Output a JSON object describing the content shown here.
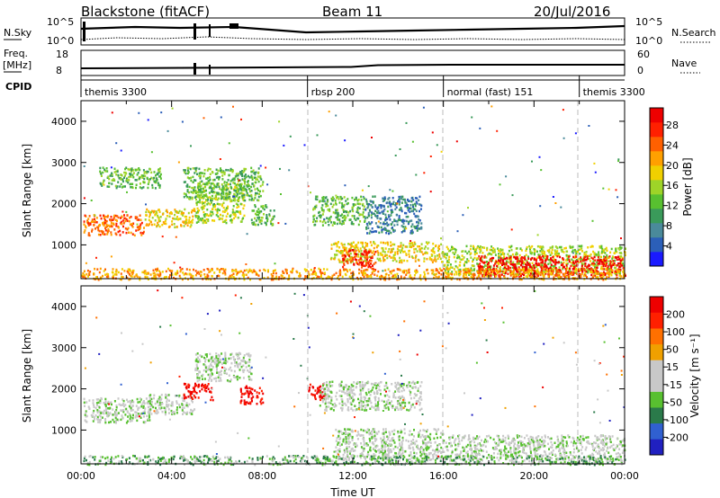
{
  "header": {
    "station": "Blackstone (fitACF)",
    "beam": "Beam 11",
    "date": "20/Jul/2016"
  },
  "top_panels": {
    "nsky_label": "N.Sky",
    "nsky_ticks": [
      "10^5",
      "10^0"
    ],
    "nsearch_label": "N.Search",
    "nsearch_ticks": [
      "10^5",
      "10^0"
    ],
    "freq_label": "Freq.",
    "freq_unit": "[MHz]",
    "freq_ticks": [
      "18",
      "8"
    ],
    "nave_label": "Nave",
    "nave_ticks": [
      "60",
      "0"
    ],
    "cpid_label": "CPID",
    "cpid_segments": [
      {
        "name": "themis 3300",
        "start": 0,
        "end": 10
      },
      {
        "name": "rbsp 200",
        "start": 10,
        "end": 16
      },
      {
        "name": "normal (fast) 151",
        "start": 16,
        "end": 22
      },
      {
        "name": "themis 3300",
        "start": 22,
        "end": 24
      }
    ]
  },
  "chart_data": [
    {
      "type": "heatmap",
      "name": "power",
      "ylabel": "Slant Range [km]",
      "xlim": [
        0,
        24
      ],
      "ylim": [
        180,
        4500
      ],
      "yticks": [
        "1000",
        "2000",
        "3000",
        "4000"
      ],
      "colorbar": {
        "label": "Power [dB]",
        "ticks": [
          "4",
          "8",
          "12",
          "16",
          "20",
          "24",
          "28"
        ],
        "colors": [
          "#1a1aff",
          "#2b5fb8",
          "#4a8a9a",
          "#3a9a5a",
          "#58c030",
          "#9ed428",
          "#f0d000",
          "#ffa000",
          "#ff6000",
          "#ff2000",
          "#ee0000"
        ]
      },
      "regions": [
        {
          "x": [
            0.1,
            2.8
          ],
          "y": [
            1250,
            1750
          ],
          "level": 8
        },
        {
          "x": [
            2.8,
            5.0
          ],
          "y": [
            1450,
            1900
          ],
          "level": 6
        },
        {
          "x": [
            5.0,
            7.2
          ],
          "y": [
            1550,
            2500
          ],
          "level": 5
        },
        {
          "x": [
            0.8,
            3.5
          ],
          "y": [
            2400,
            2900
          ],
          "level": 4
        },
        {
          "x": [
            4.5,
            8.0
          ],
          "y": [
            2100,
            2900
          ],
          "level": 4
        },
        {
          "x": [
            7.5,
            8.5
          ],
          "y": [
            1500,
            2000
          ],
          "level": 4
        },
        {
          "x": [
            10.2,
            12.5
          ],
          "y": [
            1500,
            2200
          ],
          "level": 4
        },
        {
          "x": [
            12.5,
            15.0
          ],
          "y": [
            1300,
            2200
          ],
          "level": 2
        },
        {
          "x": [
            11.0,
            16.0
          ],
          "y": [
            600,
            1100
          ],
          "level": 6
        },
        {
          "x": [
            11.5,
            13.0
          ],
          "y": [
            400,
            900
          ],
          "level": 9
        },
        {
          "x": [
            16.0,
            24.0
          ],
          "y": [
            300,
            1000
          ],
          "level": 5
        },
        {
          "x": [
            17.5,
            24.0
          ],
          "y": [
            250,
            750
          ],
          "level": 10
        },
        {
          "x": [
            0.0,
            24.0
          ],
          "y": [
            180,
            450
          ],
          "level": 7
        }
      ]
    },
    {
      "type": "heatmap",
      "name": "velocity",
      "ylabel": "Slant Range [km]",
      "xlabel": "Time UT",
      "xlim": [
        0,
        24
      ],
      "ylim": [
        180,
        4500
      ],
      "yticks": [
        "1000",
        "2000",
        "3000",
        "4000"
      ],
      "xticks": [
        "00:00",
        "04:00",
        "08:00",
        "12:00",
        "16:00",
        "20:00",
        "00:00"
      ],
      "colorbar": {
        "label": "Velocity [m s⁻¹]",
        "ticks": [
          "200",
          "100",
          "50",
          "15",
          "-15",
          "-50",
          "-100",
          "-200"
        ],
        "colors": [
          "#2020c0",
          "#3060d0",
          "#2a7a4a",
          "#58c030",
          "#c8c8c8",
          "#c8c8c8",
          "#f0a000",
          "#ff7000",
          "#ff2000",
          "#ee0000"
        ]
      },
      "regions": [
        {
          "x": [
            0.1,
            3.0
          ],
          "y": [
            1200,
            1800
          ],
          "level": 4
        },
        {
          "x": [
            3.0,
            5.0
          ],
          "y": [
            1400,
            1900
          ],
          "level": 4
        },
        {
          "x": [
            4.5,
            5.8
          ],
          "y": [
            1750,
            2150
          ],
          "level": 9
        },
        {
          "x": [
            7.0,
            8.0
          ],
          "y": [
            1650,
            2100
          ],
          "level": 9
        },
        {
          "x": [
            10.0,
            10.8
          ],
          "y": [
            1750,
            2150
          ],
          "level": 9
        },
        {
          "x": [
            5.0,
            7.5
          ],
          "y": [
            2200,
            2900
          ],
          "level": 4
        },
        {
          "x": [
            10.5,
            15.0
          ],
          "y": [
            1500,
            2200
          ],
          "level": 4
        },
        {
          "x": [
            11.2,
            16.0
          ],
          "y": [
            300,
            1050
          ],
          "level": 4
        },
        {
          "x": [
            16.0,
            24.0
          ],
          "y": [
            300,
            900
          ],
          "level": 4
        },
        {
          "x": [
            0.0,
            24.0
          ],
          "y": [
            180,
            400
          ],
          "level": 3
        }
      ]
    }
  ]
}
